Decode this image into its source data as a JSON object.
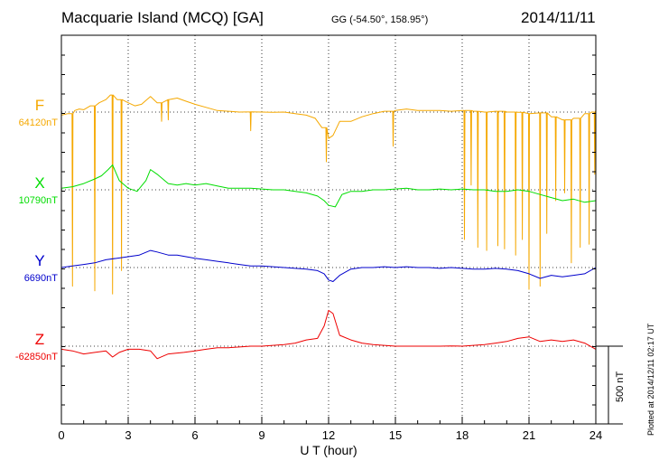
{
  "header": {
    "station": "Macquarie Island (MCQ)  [GA]",
    "coords": "GG (-54.50°, 158.95°)",
    "date": "2014/11/11"
  },
  "side_note": "Plotted at 2014/12/11 02:17 UT",
  "colors": {
    "F": "#f5a800",
    "X": "#00dd00",
    "Y": "#0000cc",
    "Z": "#ee0000",
    "axis": "#000000"
  },
  "chart_data": {
    "type": "line",
    "title": "",
    "xlabel": "U T (hour)",
    "xlim": [
      0,
      24
    ],
    "xticks": [
      "0",
      "3",
      "6",
      "9",
      "12",
      "15",
      "18",
      "21",
      "24"
    ],
    "scale_bar": {
      "label": "500 nT",
      "value": 500
    },
    "grid": "dotted vertical every 3 h, dotted baselines",
    "series": [
      {
        "name": "F",
        "baseline_label": "64120nT",
        "baseline": 64120,
        "points": [
          [
            0,
            64100
          ],
          [
            0.3,
            64110
          ],
          [
            0.6,
            64130
          ],
          [
            0.8,
            64140
          ],
          [
            1.0,
            64135
          ],
          [
            1.3,
            64160
          ],
          [
            1.7,
            64180
          ],
          [
            2.0,
            64200
          ],
          [
            2.2,
            64230
          ],
          [
            2.5,
            64200
          ],
          [
            3.0,
            64180
          ],
          [
            3.3,
            64160
          ],
          [
            3.6,
            64170
          ],
          [
            4.0,
            64220
          ],
          [
            4.3,
            64180
          ],
          [
            4.8,
            64200
          ],
          [
            5.2,
            64210
          ],
          [
            5.6,
            64190
          ],
          [
            6.0,
            64170
          ],
          [
            6.5,
            64150
          ],
          [
            7.0,
            64130
          ],
          [
            7.5,
            64125
          ],
          [
            8.0,
            64120
          ],
          [
            8.5,
            64122
          ],
          [
            9.0,
            64120
          ],
          [
            9.5,
            64118
          ],
          [
            10.0,
            64120
          ],
          [
            10.5,
            64110
          ],
          [
            11.0,
            64100
          ],
          [
            11.4,
            64080
          ],
          [
            11.7,
            64020
          ],
          [
            12.0,
            63950
          ],
          [
            12.2,
            63970
          ],
          [
            12.5,
            64060
          ],
          [
            13.0,
            64060
          ],
          [
            13.5,
            64090
          ],
          [
            14.0,
            64110
          ],
          [
            14.5,
            64125
          ],
          [
            15.0,
            64130
          ],
          [
            15.5,
            64140
          ],
          [
            16.0,
            64130
          ],
          [
            16.5,
            64130
          ],
          [
            17.0,
            64130
          ],
          [
            17.5,
            64125
          ],
          [
            18.0,
            64130
          ],
          [
            18.5,
            64125
          ],
          [
            19.0,
            64120
          ],
          [
            19.5,
            64125
          ],
          [
            20.0,
            64120
          ],
          [
            20.5,
            64118
          ],
          [
            21.0,
            64110
          ],
          [
            21.5,
            64115
          ],
          [
            22.0,
            64090
          ],
          [
            22.5,
            64070
          ],
          [
            23.0,
            64080
          ],
          [
            23.5,
            64110
          ],
          [
            23.8,
            64120
          ],
          [
            24.0,
            64130
          ]
        ],
        "spikes": [
          [
            0.5,
            63000
          ],
          [
            1.5,
            62970
          ],
          [
            2.3,
            62950
          ],
          [
            2.7,
            63100
          ],
          [
            4.5,
            64060
          ],
          [
            4.8,
            64070
          ],
          [
            8.5,
            64000
          ],
          [
            11.9,
            63800
          ],
          [
            14.9,
            63900
          ],
          [
            18.1,
            63300
          ],
          [
            18.4,
            63650
          ],
          [
            18.7,
            63250
          ],
          [
            19.1,
            63230
          ],
          [
            19.6,
            63260
          ],
          [
            19.9,
            63240
          ],
          [
            20.4,
            63200
          ],
          [
            20.7,
            63300
          ],
          [
            21.0,
            62980
          ],
          [
            21.5,
            63000
          ],
          [
            21.8,
            63340
          ],
          [
            22.2,
            63550
          ],
          [
            22.6,
            63600
          ],
          [
            22.9,
            63150
          ],
          [
            23.3,
            63250
          ],
          [
            23.7,
            63270
          ],
          [
            23.95,
            63720
          ]
        ]
      },
      {
        "name": "X",
        "baseline_label": "10790nT",
        "baseline": 10790,
        "points": [
          [
            0,
            10800
          ],
          [
            0.5,
            10810
          ],
          [
            1.0,
            10830
          ],
          [
            1.5,
            10860
          ],
          [
            1.8,
            10880
          ],
          [
            2.1,
            10920
          ],
          [
            2.3,
            10950
          ],
          [
            2.6,
            10850
          ],
          [
            3.0,
            10800
          ],
          [
            3.4,
            10780
          ],
          [
            3.8,
            10850
          ],
          [
            4.0,
            10920
          ],
          [
            4.3,
            10890
          ],
          [
            4.8,
            10830
          ],
          [
            5.2,
            10820
          ],
          [
            5.6,
            10830
          ],
          [
            6.0,
            10820
          ],
          [
            6.5,
            10830
          ],
          [
            7.0,
            10815
          ],
          [
            7.5,
            10800
          ],
          [
            8.0,
            10800
          ],
          [
            8.5,
            10800
          ],
          [
            9.0,
            10795
          ],
          [
            9.5,
            10790
          ],
          [
            10.0,
            10790
          ],
          [
            10.5,
            10780
          ],
          [
            11.0,
            10770
          ],
          [
            11.5,
            10750
          ],
          [
            11.8,
            10720
          ],
          [
            12.0,
            10690
          ],
          [
            12.3,
            10680
          ],
          [
            12.6,
            10760
          ],
          [
            13.0,
            10780
          ],
          [
            13.5,
            10780
          ],
          [
            14.0,
            10790
          ],
          [
            14.5,
            10790
          ],
          [
            15.0,
            10795
          ],
          [
            15.5,
            10800
          ],
          [
            16.0,
            10790
          ],
          [
            16.5,
            10790
          ],
          [
            17.0,
            10795
          ],
          [
            17.5,
            10790
          ],
          [
            18.0,
            10795
          ],
          [
            18.5,
            10790
          ],
          [
            19.0,
            10790
          ],
          [
            19.5,
            10780
          ],
          [
            20.0,
            10780
          ],
          [
            20.5,
            10790
          ],
          [
            21.0,
            10780
          ],
          [
            21.5,
            10760
          ],
          [
            22.0,
            10740
          ],
          [
            22.5,
            10720
          ],
          [
            23.0,
            10730
          ],
          [
            23.5,
            10710
          ],
          [
            24.0,
            10720
          ]
        ]
      },
      {
        "name": "Y",
        "baseline_label": "6690nT",
        "baseline": 6690,
        "points": [
          [
            0,
            6690
          ],
          [
            0.5,
            6700
          ],
          [
            1.0,
            6710
          ],
          [
            1.5,
            6720
          ],
          [
            2.0,
            6740
          ],
          [
            2.5,
            6750
          ],
          [
            3.0,
            6760
          ],
          [
            3.5,
            6770
          ],
          [
            4.0,
            6800
          ],
          [
            4.3,
            6790
          ],
          [
            4.8,
            6770
          ],
          [
            5.2,
            6770
          ],
          [
            5.6,
            6760
          ],
          [
            6.0,
            6750
          ],
          [
            6.5,
            6740
          ],
          [
            7.0,
            6730
          ],
          [
            7.5,
            6720
          ],
          [
            8.0,
            6710
          ],
          [
            8.5,
            6700
          ],
          [
            9.0,
            6700
          ],
          [
            9.5,
            6695
          ],
          [
            10.0,
            6690
          ],
          [
            10.5,
            6685
          ],
          [
            11.0,
            6680
          ],
          [
            11.5,
            6670
          ],
          [
            11.8,
            6650
          ],
          [
            12.0,
            6610
          ],
          [
            12.2,
            6600
          ],
          [
            12.5,
            6640
          ],
          [
            13.0,
            6680
          ],
          [
            13.5,
            6690
          ],
          [
            14.0,
            6690
          ],
          [
            14.5,
            6695
          ],
          [
            15.0,
            6690
          ],
          [
            15.5,
            6695
          ],
          [
            16.0,
            6690
          ],
          [
            16.5,
            6690
          ],
          [
            17.0,
            6685
          ],
          [
            17.5,
            6690
          ],
          [
            18.0,
            6685
          ],
          [
            18.5,
            6680
          ],
          [
            19.0,
            6680
          ],
          [
            19.5,
            6685
          ],
          [
            20.0,
            6680
          ],
          [
            20.5,
            6670
          ],
          [
            21.0,
            6650
          ],
          [
            21.5,
            6620
          ],
          [
            22.0,
            6640
          ],
          [
            22.5,
            6630
          ],
          [
            23.0,
            6640
          ],
          [
            23.5,
            6650
          ],
          [
            24.0,
            6690
          ]
        ]
      },
      {
        "name": "Z",
        "baseline_label": "-62850nT",
        "baseline": -62850,
        "points": [
          [
            0,
            -62870
          ],
          [
            0.5,
            -62880
          ],
          [
            1.0,
            -62900
          ],
          [
            1.5,
            -62890
          ],
          [
            2.0,
            -62880
          ],
          [
            2.3,
            -62920
          ],
          [
            2.6,
            -62890
          ],
          [
            3.0,
            -62870
          ],
          [
            3.5,
            -62870
          ],
          [
            4.0,
            -62880
          ],
          [
            4.3,
            -62930
          ],
          [
            4.8,
            -62900
          ],
          [
            5.5,
            -62890
          ],
          [
            6.0,
            -62880
          ],
          [
            6.5,
            -62870
          ],
          [
            7.0,
            -62860
          ],
          [
            7.5,
            -62860
          ],
          [
            8.0,
            -62855
          ],
          [
            8.5,
            -62850
          ],
          [
            9.0,
            -62850
          ],
          [
            9.5,
            -62845
          ],
          [
            10.0,
            -62840
          ],
          [
            10.5,
            -62830
          ],
          [
            11.0,
            -62810
          ],
          [
            11.5,
            -62800
          ],
          [
            11.8,
            -62720
          ],
          [
            12.0,
            -62620
          ],
          [
            12.2,
            -62640
          ],
          [
            12.5,
            -62780
          ],
          [
            13.0,
            -62810
          ],
          [
            13.5,
            -62830
          ],
          [
            14.0,
            -62840
          ],
          [
            14.5,
            -62845
          ],
          [
            15.0,
            -62850
          ],
          [
            15.5,
            -62850
          ],
          [
            16.0,
            -62850
          ],
          [
            16.5,
            -62850
          ],
          [
            17.0,
            -62850
          ],
          [
            17.5,
            -62848
          ],
          [
            18.0,
            -62850
          ],
          [
            18.5,
            -62845
          ],
          [
            19.0,
            -62840
          ],
          [
            19.5,
            -62830
          ],
          [
            20.0,
            -62820
          ],
          [
            20.5,
            -62800
          ],
          [
            21.0,
            -62790
          ],
          [
            21.5,
            -62820
          ],
          [
            22.0,
            -62810
          ],
          [
            22.5,
            -62820
          ],
          [
            23.0,
            -62810
          ],
          [
            23.5,
            -62830
          ],
          [
            24.0,
            -62870
          ]
        ]
      }
    ]
  }
}
